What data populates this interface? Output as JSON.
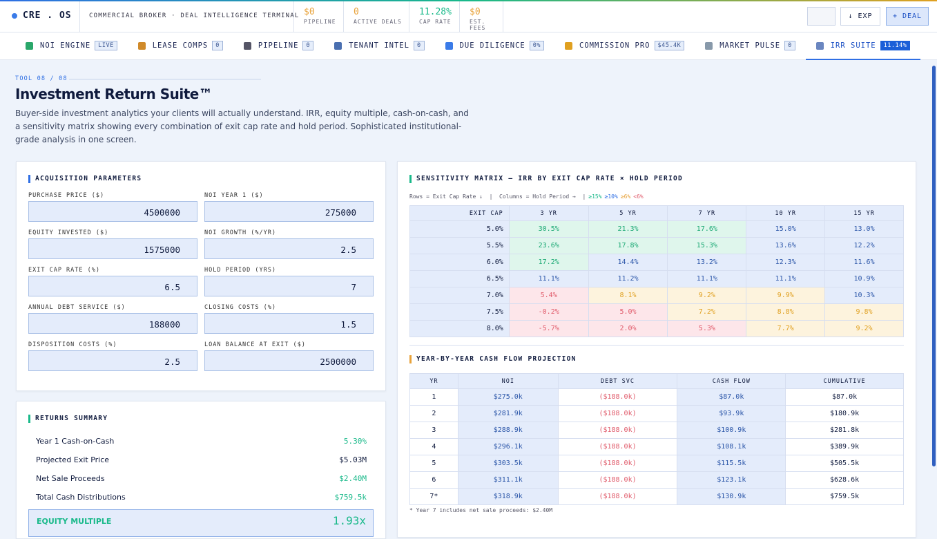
{
  "header": {
    "logo": "CRE . OS",
    "subtitle": "COMMERCIAL BROKER · DEAL INTELLIGENCE TERMINAL",
    "stats": [
      {
        "value": "$0",
        "label": "PIPELINE"
      },
      {
        "value": "0",
        "label": "ACTIVE DEALS"
      },
      {
        "value": "11.28%",
        "label": "CAP RATE"
      },
      {
        "value": "$0",
        "label": "EST. FEES"
      }
    ],
    "buttons": [
      "↓ EXP",
      "+ DEAL"
    ]
  },
  "tabs": [
    {
      "label": "NOI ENGINE",
      "badge": "LIVE"
    },
    {
      "label": "LEASE COMPS",
      "badge": "0"
    },
    {
      "label": "PIPELINE",
      "badge": "0"
    },
    {
      "label": "TENANT INTEL",
      "badge": "0"
    },
    {
      "label": "DUE DILIGENCE",
      "badge": "0%"
    },
    {
      "label": "COMMISSION PRO",
      "badge": "$45.4K"
    },
    {
      "label": "MARKET PULSE",
      "badge": "0"
    },
    {
      "label": "IRR SUITE",
      "badge": "11.14%"
    }
  ],
  "hero": {
    "eyebrow": "TOOL 08 / 08",
    "title": "Investment Return Suite™",
    "description": "Buyer-side investment analytics your clients will actually understand. IRR, equity multiple, cash-on-cash, and a sensitivity matrix showing every combination of exit cap rate and hold period. Sophisticated institutional-grade analysis in one screen."
  },
  "acquisition": {
    "title": "ACQUISITION PARAMETERS",
    "fields": [
      {
        "label": "PURCHASE PRICE ($)",
        "value": "4500000"
      },
      {
        "label": "NOI YEAR 1 ($)",
        "value": "275000"
      },
      {
        "label": "EQUITY INVESTED ($)",
        "value": "1575000"
      },
      {
        "label": "NOI GROWTH (%/YR)",
        "value": "2.5"
      },
      {
        "label": "EXIT CAP RATE (%)",
        "value": "6.5"
      },
      {
        "label": "HOLD PERIOD (YRS)",
        "value": "7"
      },
      {
        "label": "ANNUAL DEBT SERVICE ($)",
        "value": "188000"
      },
      {
        "label": "CLOSING COSTS (%)",
        "value": "1.5"
      },
      {
        "label": "DISPOSITION COSTS (%)",
        "value": "2.5"
      },
      {
        "label": "LOAN BALANCE AT EXIT ($)",
        "value": "2500000"
      }
    ]
  },
  "returns": {
    "title": "RETURNS SUMMARY",
    "rows": [
      {
        "label": "Year 1 Cash-on-Cash",
        "value": "5.30%"
      },
      {
        "label": "Projected Exit Price",
        "value": "$5.03M"
      },
      {
        "label": "Net Sale Proceeds",
        "value": "$2.40M"
      },
      {
        "label": "Total Cash Distributions",
        "value": "$759.5k"
      }
    ],
    "multiple": {
      "label": "EQUITY MULTIPLE",
      "value": "1.93x"
    }
  },
  "sensitivity": {
    "title": "SENSITIVITY MATRIX — IRR BY EXIT CAP RATE × HOLD PERIOD",
    "caption": "Rows = Exit Cap Rate ↓  |  Columns = Hold Period →  |",
    "legend": [
      "≥15%",
      "≥10%",
      "≥6%",
      "<6%"
    ],
    "header": [
      "EXIT CAP",
      "3 YR",
      "5 YR",
      "7 YR",
      "10 YR",
      "15 YR"
    ],
    "rows": [
      [
        "5.0%",
        "30.5%",
        "21.3%",
        "17.6%",
        "15.0%",
        "13.0%"
      ],
      [
        "5.5%",
        "23.6%",
        "17.8%",
        "15.3%",
        "13.6%",
        "12.2%"
      ],
      [
        "6.0%",
        "17.2%",
        "14.4%",
        "13.2%",
        "12.3%",
        "11.6%"
      ],
      [
        "6.5%",
        "11.1%",
        "11.2%",
        "11.1%",
        "11.1%",
        "10.9%"
      ],
      [
        "7.0%",
        "5.4%",
        "8.1%",
        "9.2%",
        "9.9%",
        "10.3%"
      ],
      [
        "7.5%",
        "-0.2%",
        "5.0%",
        "7.2%",
        "8.8%",
        "9.8%"
      ],
      [
        "8.0%",
        "-5.7%",
        "2.0%",
        "5.3%",
        "7.7%",
        "9.2%"
      ]
    ]
  },
  "cashflow": {
    "title": "YEAR-BY-YEAR CASH FLOW PROJECTION",
    "header": [
      "YR",
      "NOI",
      "DEBT SVC",
      "CASH FLOW",
      "CUMULATIVE"
    ],
    "rows": [
      [
        "1",
        "$275.0k",
        "($188.0k)",
        "$87.0k",
        "$87.0k"
      ],
      [
        "2",
        "$281.9k",
        "($188.0k)",
        "$93.9k",
        "$180.9k"
      ],
      [
        "3",
        "$288.9k",
        "($188.0k)",
        "$100.9k",
        "$281.8k"
      ],
      [
        "4",
        "$296.1k",
        "($188.0k)",
        "$108.1k",
        "$389.9k"
      ],
      [
        "5",
        "$303.5k",
        "($188.0k)",
        "$115.5k",
        "$505.5k"
      ],
      [
        "6",
        "$311.1k",
        "($188.0k)",
        "$123.1k",
        "$628.6k"
      ],
      [
        "7*",
        "$318.9k",
        "($188.0k)",
        "$130.9k",
        "$759.5k"
      ]
    ],
    "footnote": "* Year 7 includes net sale proceeds: $2.40M"
  }
}
